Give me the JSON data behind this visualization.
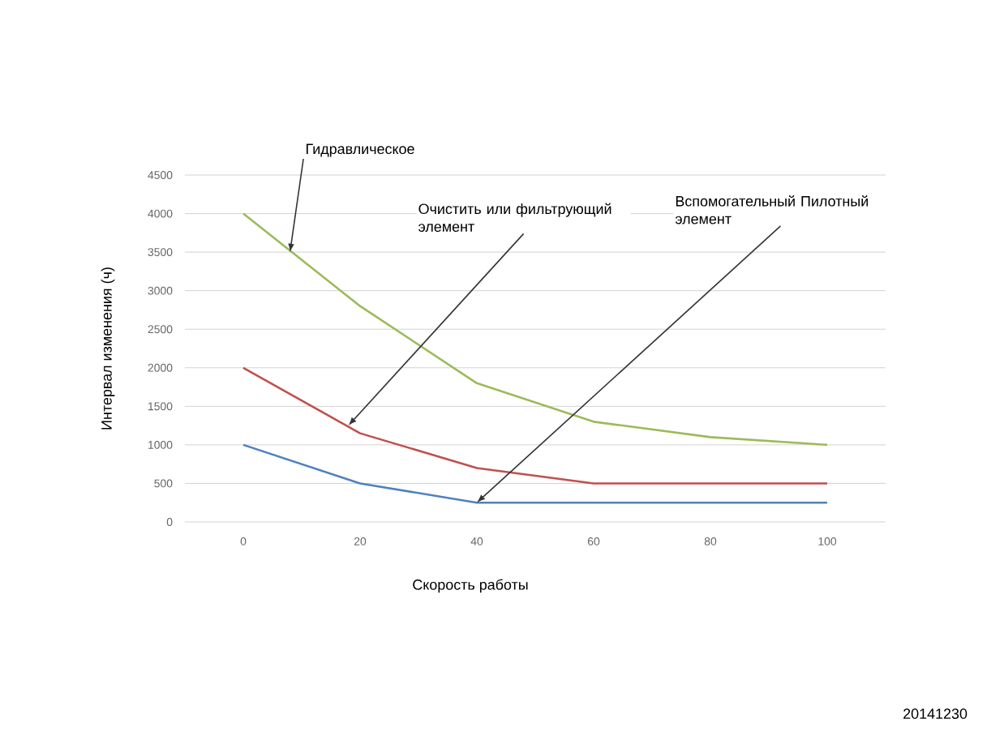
{
  "chart_data": {
    "type": "line",
    "xlabel": "Скорость работы",
    "ylabel": "Интервал изменения (ч)",
    "x": [
      0,
      20,
      40,
      60,
      80,
      100
    ],
    "series": [
      {
        "color": "#9bbb59",
        "values": [
          4000,
          2800,
          1800,
          1300,
          1100,
          1000
        ]
      },
      {
        "color": "#c0504d",
        "values": [
          2000,
          1150,
          700,
          500,
          500,
          500
        ]
      },
      {
        "color": "#4f81bd",
        "values": [
          1000,
          500,
          250,
          250,
          250,
          250
        ]
      }
    ],
    "xlim": [
      -10,
      110
    ],
    "xticks": [
      0,
      20,
      40,
      60,
      80,
      100
    ],
    "ylim": [
      0,
      4500
    ],
    "yticks": [
      0,
      500,
      1000,
      1500,
      2000,
      2500,
      3000,
      3500,
      4000,
      4500
    ],
    "grid": "y",
    "marker": "none",
    "annotations": [
      {
        "text": "Гидравлическое",
        "x": 8,
        "y": 3500
      },
      {
        "text": "Очистить или фильтрующий элемент",
        "x": 18,
        "y": 1250
      },
      {
        "text": "Вспомогательный Пилотный элемент",
        "x": 40,
        "y": 250
      },
      "20141230"
    ]
  }
}
